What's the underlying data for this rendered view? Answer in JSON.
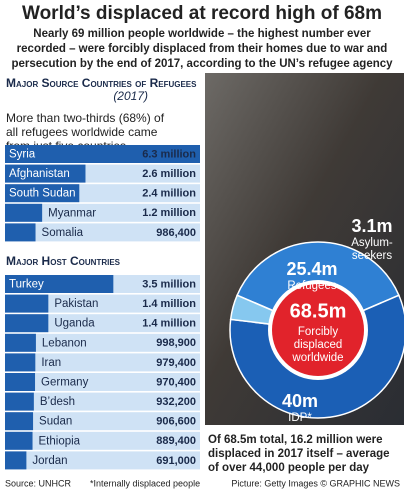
{
  "title": "World’s displaced at record high of 68m",
  "subtitle": [
    "Nearly 69 million people worldwide – the highest number ever",
    "recorded – were forcibly displaced from their homes due to war and",
    "persecution by the end of 2017, according to the UN’s refugee agency"
  ],
  "footer": {
    "source": "Source: UNHCR",
    "footnote": "*Internally displaced people",
    "credit": "Picture: Getty Images © GRAPHIC NEWS"
  },
  "chart_data": [
    {
      "type": "bar",
      "title": "Major Source Countries of Refugees",
      "subtitle": "(2017)",
      "note": [
        "More than two-thirds (68%) of",
        "all refugees worldwide came",
        "from just five countries"
      ],
      "categories": [
        "Syria",
        "Afghanistan",
        "South Sudan",
        "Myanmar",
        "Somalia"
      ],
      "values": [
        6300000,
        2600000,
        2400000,
        1200000,
        986400
      ],
      "value_labels": [
        "6.3 million",
        "2.6 million",
        "2.4 million",
        "1.2 million",
        "986,400"
      ],
      "color": "#1f5fae"
    },
    {
      "type": "bar",
      "title": "Major Host Countries",
      "categories": [
        "Turkey",
        "Pakistan",
        "Uganda",
        "Lebanon",
        "Iran",
        "Germany",
        "B’desh",
        "Sudan",
        "Ethiopia",
        "Jordan"
      ],
      "values": [
        3500000,
        1400000,
        1400000,
        998900,
        979400,
        970400,
        932200,
        906600,
        889400,
        691000
      ],
      "value_labels": [
        "3.5 million",
        "1.4 million",
        "1.4 million",
        "998,900",
        "979,400",
        "970,400",
        "932,200",
        "906,600",
        "889,400",
        "691,000"
      ],
      "color": "#1f5fae"
    },
    {
      "type": "pie",
      "center_label": "68.5m",
      "center_text": [
        "Forcibly",
        "displaced",
        "worldwide"
      ],
      "categories": [
        "Refugees",
        "IDP*",
        "Asylum-seekers"
      ],
      "values": [
        25.4,
        40,
        3.1
      ],
      "value_labels": [
        "25.4m",
        "40m",
        "3.1m"
      ],
      "colors": [
        "#2f80d3",
        "#1b5fb5",
        "#86c8ef"
      ],
      "note": [
        "Of 68.5m total, 16.2 million were",
        "displaced in 2017 itself – average",
        "of over 44,000 people per day"
      ]
    }
  ]
}
